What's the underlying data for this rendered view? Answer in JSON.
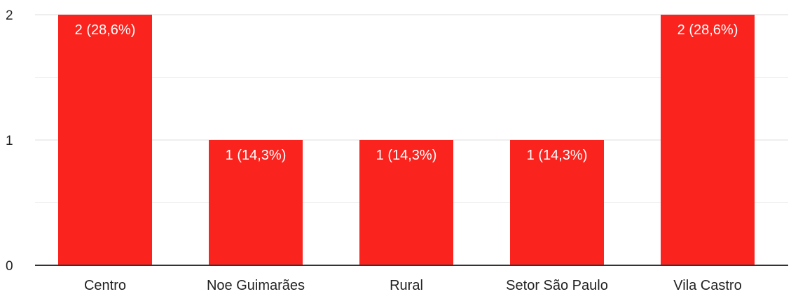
{
  "chart_data": {
    "type": "bar",
    "categories": [
      "Centro",
      "Noe Guimarães",
      "Rural",
      "Setor São Paulo",
      "Vila Castro"
    ],
    "values": [
      2,
      1,
      1,
      1,
      2
    ],
    "data_labels": [
      "2 (28,6%)",
      "1 (14,3%)",
      "1 (14,3%)",
      "1 (14,3%)",
      "2 (28,6%)"
    ],
    "title": "",
    "xlabel": "",
    "ylabel": "",
    "ylim": [
      0,
      2
    ],
    "yticks": [
      "0",
      "1",
      "2"
    ],
    "minor_gridlines": [
      0.5,
      1.5
    ],
    "grid": true,
    "legend": "none",
    "bar_color": "#fb231e",
    "gridline_color": "#eeeeee",
    "axis_color": "#333333"
  }
}
